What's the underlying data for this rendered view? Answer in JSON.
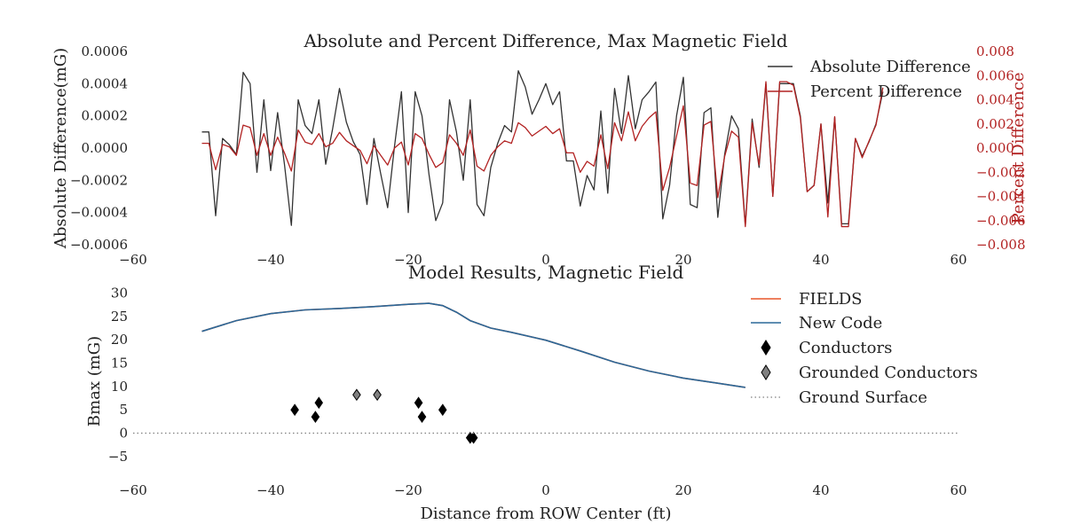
{
  "chart_data": [
    {
      "type": "line",
      "title": "Absolute and Percent Difference, Max Magnetic Field",
      "xlabel": "",
      "ylabel": "Absolute Difference(mG)",
      "y2label": "Percent Difference",
      "xlim": [
        -60,
        60
      ],
      "ylim": [
        -0.0006,
        0.0006
      ],
      "y2lim": [
        -0.008,
        0.008
      ],
      "xticks": [
        "−60",
        "−40",
        "−20",
        "0",
        "20",
        "40",
        "60"
      ],
      "yticks": [
        "0.0006",
        "0.0004",
        "0.0002",
        "0.0000",
        "−0.0002",
        "−0.0004",
        "−0.0006"
      ],
      "y2ticks": [
        "0.008",
        "0.006",
        "0.004",
        "0.002",
        "0.000",
        "−0.002",
        "−0.004",
        "−0.006",
        "−0.008"
      ],
      "legend_position": "top-right",
      "grid": false,
      "series": [
        {
          "name": "Absolute Difference",
          "color": "#333333",
          "axis": "left",
          "x": [
            -50.0,
            -49.0,
            -48.0,
            -47.0,
            -46.0,
            -45.0,
            -44.0,
            -43.0,
            -42.0,
            -41.0,
            -40.0,
            -39.0,
            -38.0,
            -37.0,
            -36.0,
            -35.0,
            -34.0,
            -33.0,
            -32.0,
            -31.0,
            -30.0,
            -29.0,
            -28.0,
            -27.0,
            -26.0,
            -25.0,
            -24.0,
            -23.0,
            -22.0,
            -21.0,
            -20.0,
            -19.0,
            -18.0,
            -17.0,
            -16.0,
            -15.0,
            -14.0,
            -13.0,
            -12.0,
            -11.0,
            -10.0,
            -9.0,
            -8.0,
            -7.0,
            -6.0,
            -5.0,
            -4.0,
            -3.0,
            -2.0,
            -1.0,
            0.0,
            1.0,
            2.0,
            3.0,
            4.0,
            5.0,
            6.0,
            7.0,
            8.0,
            9.0,
            10.0,
            11.0,
            12.0,
            13.0,
            14.0,
            15.0,
            16.0,
            17.0,
            18.0,
            19.0,
            20.0,
            21.0,
            22.0,
            23.0,
            24.0,
            25.0,
            26.0,
            27.0,
            28.0,
            29.0,
            30.0,
            31.0,
            32.0,
            33.0,
            34.0,
            35.0,
            36.0,
            37.0,
            38.0,
            39.0,
            40.0,
            41.0,
            42.0,
            43.0,
            44.0,
            45.0,
            46.0,
            47.0,
            48.0,
            49.0
          ],
          "y": [
            0.0001,
            0.0001,
            -0.00042,
            6e-05,
            2e-05,
            -4e-05,
            0.00047,
            0.0004,
            -0.00015,
            0.0003,
            -0.00014,
            0.00022,
            -0.0001,
            -0.00048,
            0.0003,
            0.00014,
            9e-05,
            0.0003,
            -0.0001,
            0.00012,
            0.00037,
            0.00016,
            4e-05,
            -4e-05,
            -0.00035,
            6e-05,
            -0.00016,
            -0.00037,
            1e-05,
            0.00035,
            -0.0004,
            0.00035,
            0.0002,
            -0.00016,
            -0.00045,
            -0.00034,
            0.0003,
            0.0001,
            -0.0002,
            0.0003,
            -0.00035,
            -0.00042,
            -0.00012,
            3e-05,
            0.00014,
            0.0001,
            0.00048,
            0.00038,
            0.00021,
            0.0003,
            0.0004,
            0.00027,
            0.00035,
            -8e-05,
            -8e-05,
            -0.00036,
            -0.00017,
            -0.00026,
            0.00023,
            -0.00028,
            0.00037,
            9e-05,
            0.00045,
            0.00012,
            0.0003,
            0.00035,
            0.00041,
            -0.00044,
            -0.00023,
            0.0002,
            0.00044,
            -0.00035,
            -0.00037,
            0.00022,
            0.00025,
            -0.00043,
            -4e-05,
            0.0002,
            0.00012,
            -0.00048,
            0.00018,
            -0.00012,
            0.0004,
            -0.0003,
            0.0004,
            0.0004,
            0.0004,
            0.0002,
            -0.00027,
            -0.00023,
            0.00015,
            -0.00034,
            0.00019,
            -0.00047,
            -0.00047,
            6e-05,
            -5e-05,
            4e-05,
            0.00015,
            0.00035
          ]
        },
        {
          "name": "Percent Difference",
          "color": "#b22222",
          "axis": "right",
          "x": [
            -50.0,
            -49.0,
            -48.0,
            -47.0,
            -46.0,
            -45.0,
            -44.0,
            -43.0,
            -42.0,
            -41.0,
            -40.0,
            -39.0,
            -38.0,
            -37.0,
            -36.0,
            -35.0,
            -34.0,
            -33.0,
            -32.0,
            -31.0,
            -30.0,
            -29.0,
            -28.0,
            -27.0,
            -26.0,
            -25.0,
            -24.0,
            -23.0,
            -22.0,
            -21.0,
            -20.0,
            -19.0,
            -18.0,
            -17.0,
            -16.0,
            -15.0,
            -14.0,
            -13.0,
            -12.0,
            -11.0,
            -10.0,
            -9.0,
            -8.0,
            -7.0,
            -6.0,
            -5.0,
            -4.0,
            -3.0,
            -2.0,
            -1.0,
            0.0,
            1.0,
            2.0,
            3.0,
            4.0,
            5.0,
            6.0,
            7.0,
            8.0,
            9.0,
            10.0,
            11.0,
            12.0,
            13.0,
            14.0,
            15.0,
            16.0,
            17.0,
            18.0,
            19.0,
            20.0,
            21.0,
            22.0,
            23.0,
            24.0,
            25.0,
            26.0,
            27.0,
            28.0,
            29.0,
            30.0,
            31.0,
            32.0,
            33.0,
            34.0,
            35.0,
            36.0,
            37.0,
            38.0,
            39.0,
            40.0,
            41.0,
            42.0,
            43.0,
            44.0,
            45.0,
            46.0,
            47.0,
            48.0,
            49.0
          ],
          "y": [
            0.0004,
            0.0004,
            -0.0018,
            0.0003,
            0.0001,
            -0.0006,
            0.0019,
            0.0017,
            -0.0006,
            0.0012,
            -0.0006,
            0.0009,
            -0.0004,
            -0.0019,
            0.0015,
            0.0005,
            0.0003,
            0.0012,
            0.0001,
            0.0004,
            0.0013,
            0.0006,
            0.0002,
            -0.0002,
            -0.0013,
            0.0002,
            -0.0006,
            -0.0014,
            0.0,
            0.0005,
            -0.0014,
            0.0012,
            0.0008,
            -0.0005,
            -0.0016,
            -0.0012,
            0.0011,
            0.0004,
            -0.0006,
            0.0015,
            -0.0015,
            -0.0019,
            -0.0006,
            0.0001,
            0.0006,
            0.0004,
            0.0021,
            0.0017,
            0.001,
            0.0014,
            0.0018,
            0.0012,
            0.0016,
            -0.0004,
            -0.0004,
            -0.002,
            -0.0011,
            -0.0015,
            0.0011,
            -0.0017,
            0.0021,
            0.0006,
            0.003,
            0.0006,
            0.0018,
            0.0025,
            0.003,
            -0.0035,
            -0.0016,
            0.001,
            0.0035,
            -0.0029,
            -0.0031,
            0.0019,
            0.0022,
            -0.0041,
            -0.0007,
            0.0014,
            0.0009,
            -0.0065,
            0.0021,
            -0.0014,
            0.0055,
            -0.004,
            0.0055,
            0.0055,
            0.0052,
            0.0025,
            -0.0036,
            -0.0031,
            0.002,
            -0.0057,
            0.0026,
            -0.0065,
            -0.0065,
            0.0008,
            -0.0008,
            0.0006,
            0.0019,
            0.005
          ]
        }
      ]
    },
    {
      "type": "line",
      "title": "Model Results, Magnetic Field",
      "xlabel": "Distance from ROW Center (ft)",
      "ylabel": "Bmax (mG)",
      "xlim": [
        -60,
        60
      ],
      "ylim": [
        -7.5,
        32
      ],
      "xticks": [
        "−60",
        "−40",
        "−20",
        "0",
        "20",
        "40",
        "60"
      ],
      "yticks": [
        "30",
        "25",
        "20",
        "15",
        "10",
        "5",
        "0",
        "−5"
      ],
      "legend_position": "top-right",
      "grid": false,
      "series": [
        {
          "name": "FIELDS",
          "color": "#e8562a",
          "x": [
            -50,
            -45,
            -40,
            -35,
            -30,
            -25,
            -20,
            -17,
            -15,
            -13,
            -11,
            -8,
            -5,
            0,
            5,
            10,
            15,
            20,
            25,
            29
          ],
          "y": [
            21.8,
            24.1,
            25.6,
            26.4,
            26.7,
            27.1,
            27.6,
            27.8,
            27.3,
            25.9,
            24.1,
            22.5,
            21.6,
            19.9,
            17.6,
            15.2,
            13.3,
            11.8,
            10.7,
            9.8
          ]
        },
        {
          "name": "New Code",
          "color": "#2a6899",
          "x": [
            -50,
            -45,
            -40,
            -35,
            -30,
            -25,
            -20,
            -17,
            -15,
            -13,
            -11,
            -8,
            -5,
            0,
            5,
            10,
            15,
            20,
            25,
            29
          ],
          "y": [
            21.8,
            24.1,
            25.6,
            26.4,
            26.7,
            27.1,
            27.6,
            27.8,
            27.3,
            25.9,
            24.1,
            22.5,
            21.6,
            19.9,
            17.6,
            15.2,
            13.3,
            11.8,
            10.7,
            9.8
          ]
        },
        {
          "name": "Conductors",
          "color": "#000000",
          "marker": "diamond",
          "x": [
            -36.5,
            -33.5,
            -33.0,
            -18.5,
            -18.0,
            -15.0,
            -11.0,
            -10.5
          ],
          "y": [
            5.0,
            3.5,
            6.5,
            6.5,
            3.5,
            5.0,
            -1.0,
            -1.0
          ]
        },
        {
          "name": "Grounded Conductors",
          "color": "#808080",
          "marker": "diamond",
          "x": [
            -27.5,
            -24.5
          ],
          "y": [
            8.2,
            8.2
          ]
        },
        {
          "name": "Ground Surface",
          "color": "#808080",
          "dash": "dotted",
          "x": [
            -60,
            60
          ],
          "y": [
            0,
            0
          ]
        }
      ]
    }
  ]
}
